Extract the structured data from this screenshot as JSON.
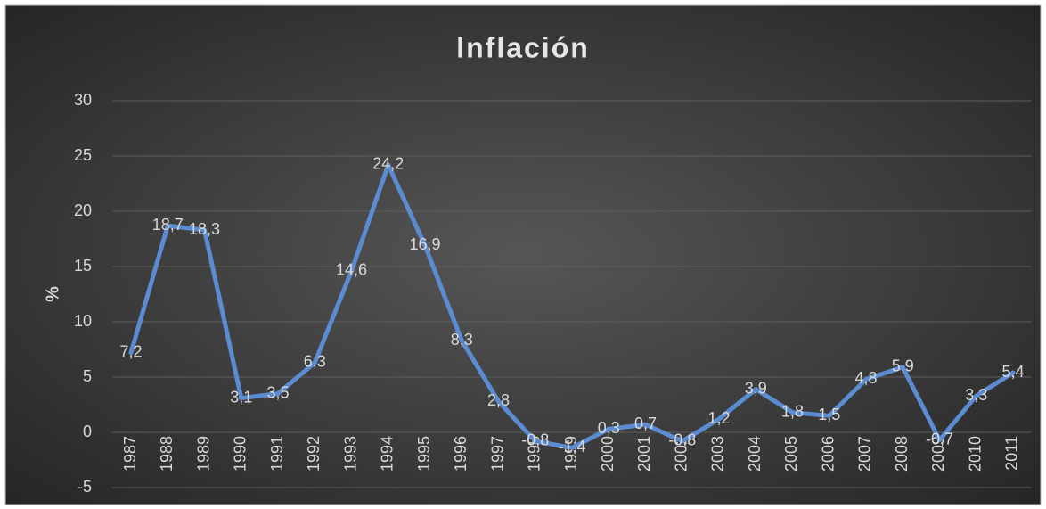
{
  "chart_data": {
    "type": "line",
    "title": "Inflación",
    "y_label": "%",
    "categories": [
      "1987",
      "1988",
      "1989",
      "1990",
      "1991",
      "1992",
      "1993",
      "1994",
      "1995",
      "1996",
      "1997",
      "1998",
      "1999",
      "2000",
      "2001",
      "2002",
      "2003",
      "2004",
      "2005",
      "2006",
      "2007",
      "2008",
      "2009",
      "2010",
      "2011"
    ],
    "values": [
      7.2,
      18.7,
      18.3,
      3.1,
      3.5,
      6.3,
      14.6,
      24.2,
      16.9,
      8.3,
      2.8,
      -0.8,
      -1.4,
      0.3,
      0.7,
      -0.8,
      1.2,
      3.9,
      1.8,
      1.5,
      4.8,
      5.9,
      -0.7,
      3.3,
      5.4
    ],
    "value_labels": [
      "7,2",
      "18,7",
      "18,3",
      "3,1",
      "3,5",
      "6,3",
      "14,6",
      "24,2",
      "16,9",
      "8,3",
      "2,8",
      "-0,8",
      "-1,4",
      "0,3",
      "0,7",
      "-0,8",
      "1,2",
      "3,9",
      "1,8",
      "1,5",
      "4,8",
      "5,9",
      "-0,7",
      "3,3",
      "5,4"
    ],
    "color": "#5b8bd0",
    "ylim": [
      -5,
      30
    ],
    "yticks": [
      -5,
      0,
      5,
      10,
      15,
      20,
      25,
      30
    ],
    "grid": true
  }
}
